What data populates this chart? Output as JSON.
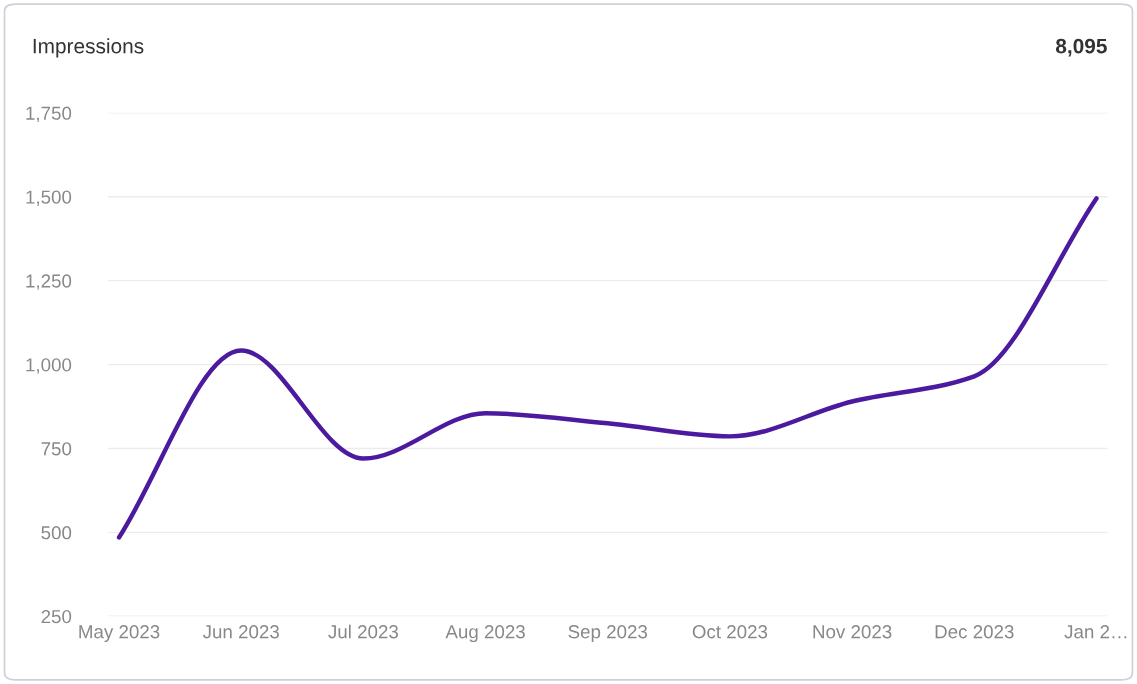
{
  "chart_data": {
    "type": "line",
    "title": "Impressions",
    "annotations": [
      "8,095"
    ],
    "categories": [
      "May 2023",
      "Jun 2023",
      "Jul 2023",
      "Aug 2023",
      "Sep 2023",
      "Oct 2023",
      "Nov 2023",
      "Dec 2023",
      "Jan 2…"
    ],
    "series": [
      {
        "color": "#4b1a9e",
        "values": [
          485,
          1042,
          720,
          855,
          825,
          786,
          890,
          965,
          1495
        ]
      }
    ],
    "ylim": [
      250,
      1750
    ],
    "yticks": [
      {
        "value": 250,
        "label": "250"
      },
      {
        "value": 500,
        "label": "500"
      },
      {
        "value": 750,
        "label": "750"
      },
      {
        "value": 1000,
        "label": "1,000"
      },
      {
        "value": 1250,
        "label": "1,250"
      },
      {
        "value": 1500,
        "label": "1,500"
      },
      {
        "value": 1750,
        "label": "1,750"
      }
    ],
    "grid": "y",
    "legend": false,
    "marker": "none",
    "line_style": "solid"
  }
}
